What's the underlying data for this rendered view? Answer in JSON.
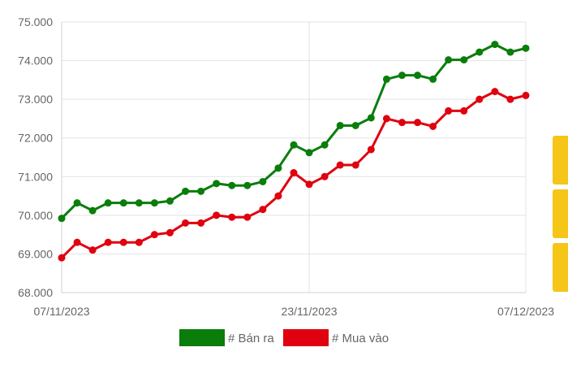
{
  "chart_data": {
    "type": "line",
    "title": "",
    "xlabel": "",
    "ylabel": "",
    "x_tick_labels": [
      "07/11/2023",
      "23/11/2023",
      "07/12/2023"
    ],
    "x_tick_positions": [
      0,
      16,
      30
    ],
    "y_tick_labels": [
      "68.000",
      "69.000",
      "70.000",
      "71.000",
      "72.000",
      "73.000",
      "74.000",
      "75.000"
    ],
    "y_ticks": [
      68000,
      69000,
      70000,
      71000,
      72000,
      73000,
      74000,
      75000
    ],
    "ylim": [
      68000,
      75000
    ],
    "x_count": 31,
    "grid": "on",
    "legend_position": "bottom",
    "series": [
      {
        "name": "# Bán ra",
        "color": "#0a7d0a",
        "values": [
          69920,
          70320,
          70120,
          70320,
          70320,
          70320,
          70320,
          70370,
          70620,
          70620,
          70820,
          70770,
          70770,
          70870,
          71220,
          71820,
          71620,
          71820,
          72320,
          72320,
          72520,
          73520,
          73620,
          73620,
          73520,
          74020,
          74020,
          74220,
          74420,
          74220,
          74320
        ]
      },
      {
        "name": "# Mua vào",
        "color": "#e0000f",
        "values": [
          68900,
          69300,
          69100,
          69300,
          69300,
          69300,
          69500,
          69550,
          69800,
          69800,
          70000,
          69950,
          69950,
          70150,
          70500,
          71100,
          70800,
          71000,
          71300,
          71300,
          71700,
          72500,
          72400,
          72400,
          72300,
          72700,
          72700,
          73000,
          73200,
          73000,
          73100
        ]
      }
    ]
  },
  "side_tab_color": "#f5c518"
}
